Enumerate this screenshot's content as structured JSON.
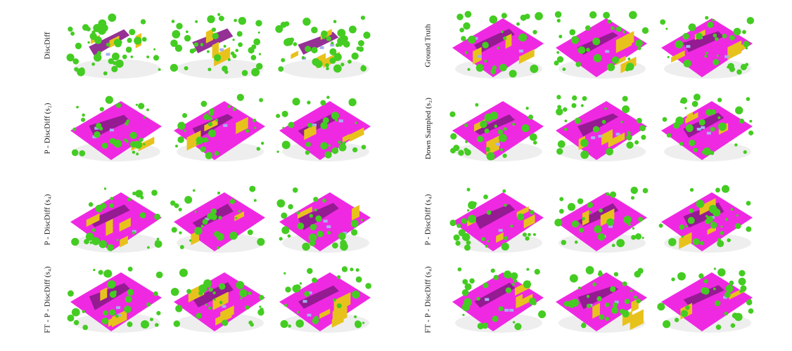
{
  "figure": {
    "left_panel": {
      "row_labels": [
        "DiscDiff",
        "P - DiscDiff (s₂)",
        "P - DiscDiff (s₄)",
        "FT - P - DiscDiff (s₄)"
      ]
    },
    "right_panel": {
      "row_labels": [
        "Ground Truth",
        "Down Sampled (s₂)",
        "P - DiscDiff (s₄)",
        "FT - P - DiscDiff (s₄)"
      ]
    },
    "colors": {
      "road": "#ee1ee0",
      "sidewalk": "#8a1a8a",
      "vegetation": "#44cc22",
      "building": "#e8c21c",
      "car": "#a6b0ee",
      "terrain_shadow": "#d9d9d9"
    },
    "samples_per_row": 3
  }
}
